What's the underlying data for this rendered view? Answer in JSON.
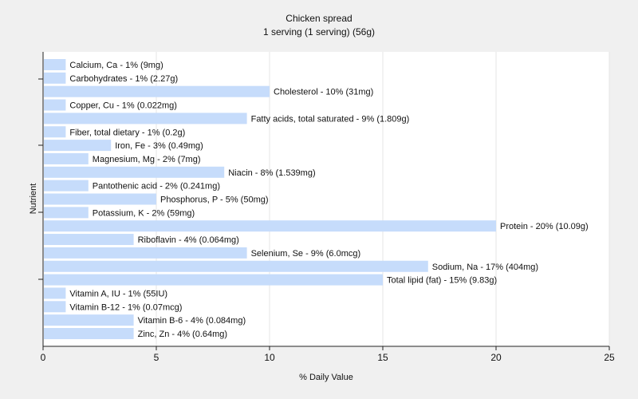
{
  "chart_data": {
    "type": "bar",
    "orientation": "horizontal",
    "title": "Chicken spread",
    "subtitle": "1 serving (1 serving) (56g)",
    "xlabel": "% Daily Value",
    "ylabel": "Nutrient",
    "xlim": [
      0,
      25
    ],
    "xticks": [
      0,
      5,
      10,
      15,
      20,
      25
    ],
    "grid": true,
    "bar_color": "#c6dcfb",
    "background": "#f0f0f0",
    "plot_background": "#ffffff",
    "categories": [
      "Calcium, Ca",
      "Carbohydrates",
      "Cholesterol",
      "Copper, Cu",
      "Fatty acids, total saturated",
      "Fiber, total dietary",
      "Iron, Fe",
      "Magnesium, Mg",
      "Niacin",
      "Pantothenic acid",
      "Phosphorus, P",
      "Potassium, K",
      "Protein",
      "Riboflavin",
      "Selenium, Se",
      "Sodium, Na",
      "Total lipid (fat)",
      "Vitamin A, IU",
      "Vitamin B-12",
      "Vitamin B-6",
      "Zinc, Zn"
    ],
    "values": [
      1,
      1,
      10,
      1,
      9,
      1,
      3,
      2,
      8,
      2,
      5,
      2,
      20,
      4,
      9,
      17,
      15,
      1,
      1,
      4,
      4
    ],
    "labels": [
      "Calcium, Ca - 1% (9mg)",
      "Carbohydrates - 1% (2.27g)",
      "Cholesterol - 10% (31mg)",
      "Copper, Cu - 1% (0.022mg)",
      "Fatty acids, total saturated - 9% (1.809g)",
      "Fiber, total dietary - 1% (0.2g)",
      "Iron, Fe - 3% (0.49mg)",
      "Magnesium, Mg - 2% (7mg)",
      "Niacin - 8% (1.539mg)",
      "Pantothenic acid - 2% (0.241mg)",
      "Phosphorus, P - 5% (50mg)",
      "Potassium, K - 2% (59mg)",
      "Protein - 20% (10.09g)",
      "Riboflavin - 4% (0.064mg)",
      "Selenium, Se - 9% (6.0mcg)",
      "Sodium, Na - 17% (404mg)",
      "Total lipid (fat) - 15% (9.83g)",
      "Vitamin A, IU - 1% (55IU)",
      "Vitamin B-12 - 1% (0.07mcg)",
      "Vitamin B-6 - 4% (0.084mg)",
      "Zinc, Zn - 4% (0.64mg)"
    ]
  }
}
